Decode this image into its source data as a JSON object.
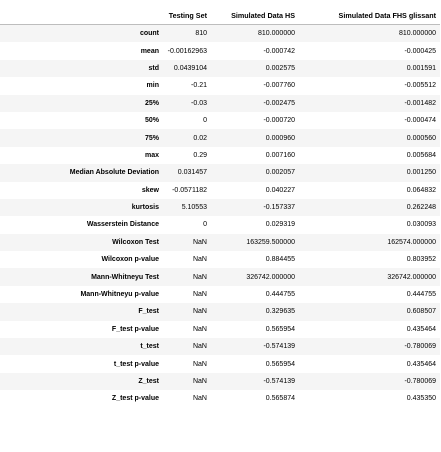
{
  "table": {
    "columns": [
      "",
      "Testing Set",
      "Simulated Data HS",
      "Simulated Data FHS glissant"
    ],
    "rows": [
      {
        "label": "count",
        "values": [
          "810",
          "810.000000",
          "810.000000"
        ]
      },
      {
        "label": "mean",
        "values": [
          "-0.00162963",
          "-0.000742",
          "-0.000425"
        ]
      },
      {
        "label": "std",
        "values": [
          "0.0439104",
          "0.002575",
          "0.001591"
        ]
      },
      {
        "label": "min",
        "values": [
          "-0.21",
          "-0.007760",
          "-0.005512"
        ]
      },
      {
        "label": "25%",
        "values": [
          "-0.03",
          "-0.002475",
          "-0.001482"
        ]
      },
      {
        "label": "50%",
        "values": [
          "0",
          "-0.000720",
          "-0.000474"
        ]
      },
      {
        "label": "75%",
        "values": [
          "0.02",
          "0.000960",
          "0.000560"
        ]
      },
      {
        "label": "max",
        "values": [
          "0.29",
          "0.007160",
          "0.005684"
        ]
      },
      {
        "label": "Median Absolute Deviation",
        "values": [
          "0.031457",
          "0.002057",
          "0.001250"
        ]
      },
      {
        "label": "skew",
        "values": [
          "-0.0571182",
          "0.040227",
          "0.064832"
        ]
      },
      {
        "label": "kurtosis",
        "values": [
          "5.10553",
          "-0.157337",
          "0.262248"
        ]
      },
      {
        "label": "Wasserstein Distance",
        "values": [
          "0",
          "0.029319",
          "0.030093"
        ]
      },
      {
        "label": "Wilcoxon Test",
        "values": [
          "NaN",
          "163259.500000",
          "162574.000000"
        ]
      },
      {
        "label": "Wilcoxon p-value",
        "values": [
          "NaN",
          "0.884455",
          "0.803952"
        ]
      },
      {
        "label": "Mann-Whitneyu Test",
        "values": [
          "NaN",
          "326742.000000",
          "326742.000000"
        ]
      },
      {
        "label": "Mann-Whitneyu p-value",
        "values": [
          "NaN",
          "0.444755",
          "0.444755"
        ]
      },
      {
        "label": "F_test",
        "values": [
          "NaN",
          "0.329635",
          "0.608507"
        ]
      },
      {
        "label": "F_test p-value",
        "values": [
          "NaN",
          "0.565954",
          "0.435464"
        ]
      },
      {
        "label": "t_test",
        "values": [
          "NaN",
          "-0.574139",
          "-0.780069"
        ]
      },
      {
        "label": "t_test p-value",
        "values": [
          "NaN",
          "0.565954",
          "0.435464"
        ]
      },
      {
        "label": "Z_test",
        "values": [
          "NaN",
          "-0.574139",
          "-0.780069"
        ]
      },
      {
        "label": "Z_test p-value",
        "values": [
          "NaN",
          "0.565874",
          "0.435350"
        ]
      }
    ]
  }
}
